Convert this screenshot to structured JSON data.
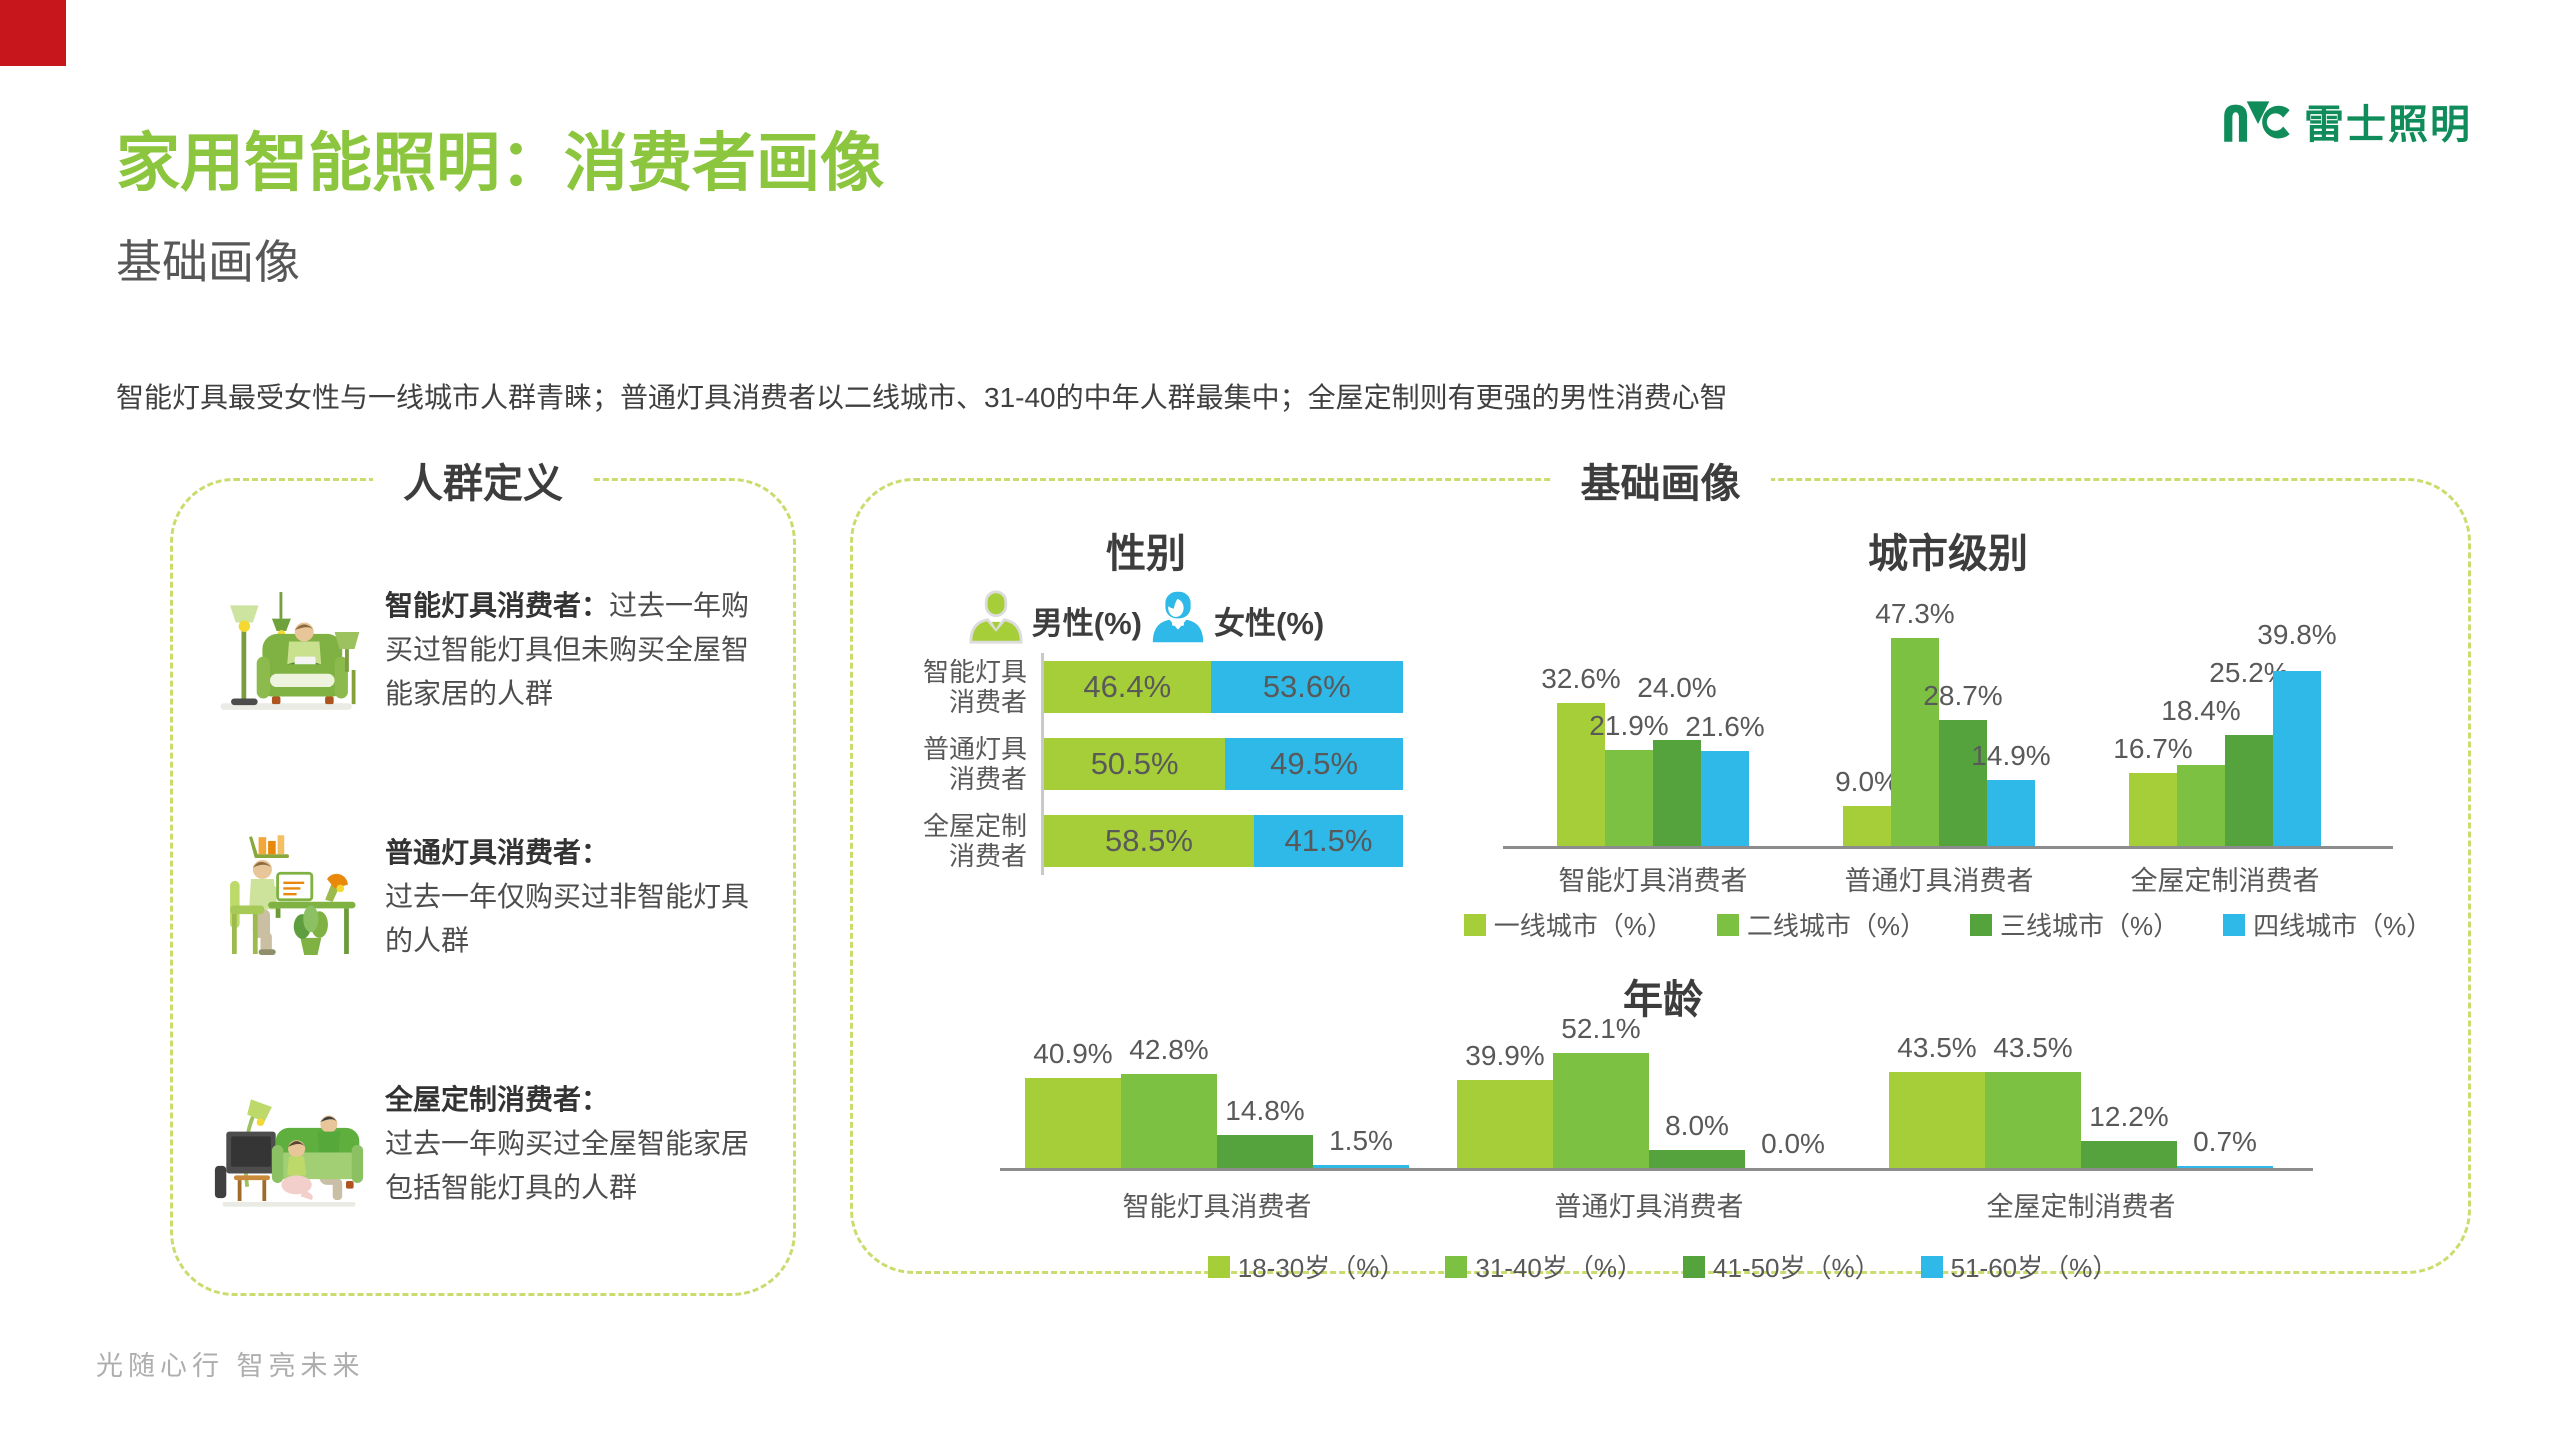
{
  "page": {
    "title": "家用智能照明：消费者画像",
    "subtitle": "基础画像",
    "description": "智能灯具最受女性与一线城市人群青睐；普通灯具消费者以二线城市、31-40的中年人群最集中；全屋定制则有更强的男性消费心智",
    "footer": "光随心行  智亮未来",
    "title_color": "#8CC63E",
    "accent_red": "#C8161D",
    "brand": {
      "logo_text": "雷士照明",
      "brand_color": "#0F8C5A"
    }
  },
  "definitions_panel": {
    "title": "人群定义",
    "items": [
      {
        "icon": "person-armchair-illustration",
        "term": "智能灯具消费者：",
        "desc": "过去一年购买过智能灯具但未购买全屋智能家居的人群"
      },
      {
        "icon": "person-desk-illustration",
        "term": "普通灯具消费者：",
        "desc": "过去一年仅购买过非智能灯具的人群"
      },
      {
        "icon": "family-sofa-illustration",
        "term": "全屋定制消费者：",
        "desc": "过去一年购买过全屋智能家居包括智能灯具的人群"
      }
    ]
  },
  "profile_panel": {
    "title": "基础画像"
  },
  "chart_data": [
    {
      "id": "gender",
      "type": "bar",
      "variant": "horizontal-stacked",
      "title": "性别",
      "categories": [
        "智能灯具消费者",
        "普通灯具消费者",
        "全屋定制消费者"
      ],
      "category_lines": [
        [
          "智能灯具",
          "消费者"
        ],
        [
          "普通灯具",
          "消费者"
        ],
        [
          "全屋定制",
          "消费者"
        ]
      ],
      "series": [
        {
          "name": "男性(%)",
          "color": "#A6CE39",
          "values": [
            46.4,
            50.5,
            58.5
          ]
        },
        {
          "name": "女性(%)",
          "color": "#2EB9E8",
          "values": [
            53.6,
            49.5,
            41.5
          ]
        }
      ],
      "value_suffix": "%",
      "xlim": [
        0,
        100
      ]
    },
    {
      "id": "city-tier",
      "type": "bar",
      "variant": "grouped-vertical",
      "title": "城市级别",
      "categories": [
        "智能灯具消费者",
        "普通灯具消费者",
        "全屋定制消费者"
      ],
      "series": [
        {
          "name": "一线城市（%）",
          "color": "#A6CE39",
          "values": [
            32.6,
            9.0,
            16.7
          ]
        },
        {
          "name": "二线城市（%）",
          "color": "#7CC142",
          "values": [
            21.9,
            47.3,
            18.4
          ]
        },
        {
          "name": "三线城市（%）",
          "color": "#55A33C",
          "values": [
            24.0,
            28.7,
            25.2
          ]
        },
        {
          "name": "四线城市（%）",
          "color": "#2EB9E8",
          "values": [
            21.6,
            14.9,
            39.8
          ]
        }
      ],
      "value_suffix": "%",
      "ylim": [
        0,
        50
      ],
      "legend_position": "bottom"
    },
    {
      "id": "age",
      "type": "bar",
      "variant": "grouped-vertical",
      "title": "年龄",
      "categories": [
        "智能灯具消费者",
        "普通灯具消费者",
        "全屋定制消费者"
      ],
      "series": [
        {
          "name": "18-30岁（%）",
          "color": "#A6CE39",
          "values": [
            40.9,
            39.9,
            43.5
          ]
        },
        {
          "name": "31-40岁（%）",
          "color": "#7CC142",
          "values": [
            42.8,
            52.1,
            43.5
          ]
        },
        {
          "name": "41-50岁（%）",
          "color": "#55A33C",
          "values": [
            14.8,
            8.0,
            12.2
          ]
        },
        {
          "name": "51-60岁（%）",
          "color": "#2EB9E8",
          "values": [
            1.5,
            0.0,
            0.7
          ]
        }
      ],
      "value_suffix": "%",
      "ylim": [
        0,
        60
      ],
      "legend_position": "bottom"
    }
  ]
}
